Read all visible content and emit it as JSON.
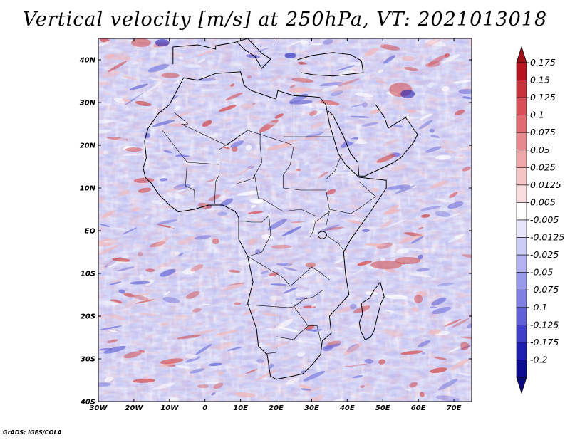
{
  "title": "Vertical velocity [m/s] at 250hPa, VT: 2021013018",
  "credit": "GrADS: IGES/COLA",
  "map": {
    "lon_range": [
      -30,
      75
    ],
    "lat_range": [
      -40,
      45
    ],
    "lon_ticks": [
      {
        "value": -30,
        "label": "30W"
      },
      {
        "value": -20,
        "label": "20W"
      },
      {
        "value": -10,
        "label": "10W"
      },
      {
        "value": 0,
        "label": "0"
      },
      {
        "value": 10,
        "label": "10E"
      },
      {
        "value": 20,
        "label": "20E"
      },
      {
        "value": 30,
        "label": "30E"
      },
      {
        "value": 40,
        "label": "40E"
      },
      {
        "value": 50,
        "label": "50E"
      },
      {
        "value": 60,
        "label": "60E"
      },
      {
        "value": 70,
        "label": "70E"
      }
    ],
    "lat_ticks": [
      {
        "value": 40,
        "label": "40N"
      },
      {
        "value": 30,
        "label": "30N"
      },
      {
        "value": 20,
        "label": "20N"
      },
      {
        "value": 10,
        "label": "10N"
      },
      {
        "value": 0,
        "label": "EQ"
      },
      {
        "value": -10,
        "label": "10S"
      },
      {
        "value": -20,
        "label": "20S"
      },
      {
        "value": -30,
        "label": "30S"
      },
      {
        "value": -40,
        "label": "40S"
      }
    ],
    "africa_outline": [
      [
        -17,
        21
      ],
      [
        -16,
        24
      ],
      [
        -13,
        27.5
      ],
      [
        -10,
        29.5
      ],
      [
        -6,
        35.8
      ],
      [
        -2,
        35.2
      ],
      [
        3,
        36.8
      ],
      [
        10,
        37.2
      ],
      [
        11,
        34
      ],
      [
        13,
        32.8
      ],
      [
        20,
        30.8
      ],
      [
        20.5,
        32.8
      ],
      [
        25,
        31.6
      ],
      [
        30,
        31.4
      ],
      [
        32.3,
        31.2
      ],
      [
        34,
        29.5
      ],
      [
        35,
        25
      ],
      [
        37.5,
        18
      ],
      [
        39.5,
        15.5
      ],
      [
        43.3,
        12.5
      ],
      [
        51,
        11.8
      ],
      [
        51,
        10
      ],
      [
        47,
        5
      ],
      [
        41,
        -2
      ],
      [
        39,
        -5
      ],
      [
        39.5,
        -10
      ],
      [
        40.5,
        -15
      ],
      [
        35,
        -20
      ],
      [
        35.5,
        -24
      ],
      [
        33,
        -25.8
      ],
      [
        32.5,
        -29
      ],
      [
        30,
        -31.5
      ],
      [
        27.5,
        -33.5
      ],
      [
        25,
        -34
      ],
      [
        20,
        -34.8
      ],
      [
        18.4,
        -34
      ],
      [
        17.5,
        -29
      ],
      [
        15,
        -27
      ],
      [
        14.5,
        -23
      ],
      [
        12,
        -17
      ],
      [
        13.5,
        -12
      ],
      [
        12,
        -6
      ],
      [
        9.5,
        -2
      ],
      [
        9.5,
        3
      ],
      [
        8.5,
        4.5
      ],
      [
        5,
        6
      ],
      [
        1,
        6
      ],
      [
        -3,
        5
      ],
      [
        -7.5,
        4.4
      ],
      [
        -10,
        6
      ],
      [
        -13,
        8.5
      ],
      [
        -15,
        11
      ],
      [
        -16.8,
        12.5
      ],
      [
        -17.4,
        14.7
      ],
      [
        -16.5,
        17
      ],
      [
        -17,
        21
      ]
    ],
    "madagascar_outline": [
      [
        49.3,
        -12
      ],
      [
        50.4,
        -15.5
      ],
      [
        49.5,
        -17
      ],
      [
        48.5,
        -20
      ],
      [
        47.5,
        -23.5
      ],
      [
        46.5,
        -25
      ],
      [
        45,
        -25.5
      ],
      [
        43.8,
        -23.5
      ],
      [
        43.4,
        -21.5
      ],
      [
        44.3,
        -19.5
      ],
      [
        44,
        -17
      ],
      [
        46.3,
        -15.8
      ],
      [
        47.5,
        -14
      ],
      [
        49.3,
        -12
      ]
    ],
    "arabia_outline": [
      [
        34.5,
        28.2
      ],
      [
        36,
        27
      ],
      [
        39,
        22
      ],
      [
        41,
        18
      ],
      [
        43,
        16
      ],
      [
        43.3,
        12.8
      ],
      [
        45,
        12.8
      ],
      [
        52,
        15.5
      ],
      [
        55,
        17
      ],
      [
        58.5,
        20.5
      ],
      [
        59.8,
        22.5
      ],
      [
        56.4,
        26.5
      ],
      [
        51.5,
        24
      ],
      [
        50.5,
        26.5
      ],
      [
        48,
        29.5
      ]
    ],
    "north_coast_outline": [
      [
        -9,
        39
      ],
      [
        -9,
        43
      ],
      [
        -2,
        43.5
      ],
      [
        3,
        42.5
      ],
      [
        3,
        43.3
      ],
      [
        8,
        44
      ],
      [
        12,
        45
      ],
      [
        16,
        41.5
      ],
      [
        18.5,
        40.2
      ],
      [
        16,
        38
      ],
      [
        14,
        40.8
      ],
      [
        11,
        42.5
      ],
      [
        9,
        44.2
      ]
    ],
    "turkey_outline": [
      [
        26,
        40
      ],
      [
        30,
        41
      ],
      [
        36,
        41.7
      ],
      [
        41,
        41.2
      ],
      [
        44,
        39.8
      ],
      [
        44.5,
        37
      ],
      [
        36,
        36.2
      ],
      [
        30.5,
        36.5
      ],
      [
        27,
        37
      ]
    ],
    "colorbar": {
      "levels": [
        "0.175",
        "0.15",
        "0.125",
        "0.1",
        "0.075",
        "0.05",
        "0.025",
        "0.0125",
        "0.005",
        "-0.005",
        "-0.0125",
        "-0.025",
        "-0.05",
        "-0.075",
        "-0.1",
        "-0.125",
        "-0.175",
        "-0.2"
      ],
      "colors": [
        "#b8141f",
        "#c8323a",
        "#d84f55",
        "#e06b70",
        "#e88a8d",
        "#efa8aa",
        "#f5c5c6",
        "#fadedf",
        "#ffffff",
        "#e6e6fb",
        "#ccccf6",
        "#b3b3f1",
        "#9999ec",
        "#7f7fe3",
        "#6060d8",
        "#4040c8",
        "#2020b0",
        "#0c0c90"
      ],
      "top_tip_color": "#a01018",
      "bottom_tip_color": "#0a0a80"
    },
    "field_palette": {
      "background": "#b8b8f0",
      "strong_down": "#6a6ad8",
      "light_down": "#d8d8fa",
      "light_up": "#f2b6b6",
      "strong_up": "#d24a4a",
      "neutral": "#ffffff"
    }
  }
}
